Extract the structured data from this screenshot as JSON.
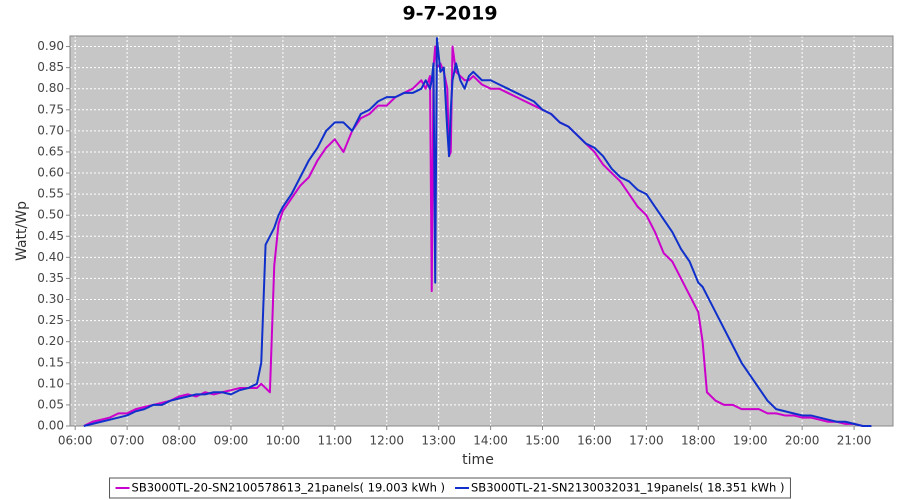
{
  "chart_data": {
    "type": "line",
    "title": "9-7-2019",
    "x_label": "time",
    "y_label": "Watt/Wp",
    "x": [
      370,
      380,
      390,
      400,
      410,
      420,
      430,
      440,
      450,
      460,
      470,
      480,
      490,
      500,
      510,
      520,
      530,
      540,
      550,
      560,
      570,
      575,
      580,
      585,
      590,
      595,
      600,
      610,
      620,
      630,
      640,
      650,
      660,
      670,
      680,
      690,
      700,
      710,
      720,
      730,
      740,
      750,
      760,
      765,
      770,
      772,
      774,
      776,
      778,
      782,
      786,
      790,
      792,
      794,
      796,
      800,
      805,
      810,
      815,
      820,
      830,
      840,
      850,
      860,
      870,
      880,
      890,
      900,
      910,
      920,
      930,
      940,
      950,
      960,
      970,
      980,
      990,
      1000,
      1010,
      1020,
      1030,
      1040,
      1050,
      1060,
      1070,
      1080,
      1085,
      1090,
      1100,
      1110,
      1120,
      1130,
      1140,
      1150,
      1160,
      1170,
      1180,
      1190,
      1200,
      1210,
      1220,
      1230,
      1240,
      1250,
      1260,
      1270,
      1280
    ],
    "series": [
      {
        "name": "SB3000TL-20-SN2100578613_21panels( 19.003 kWh )",
        "color": "#cc00cc",
        "values": [
          0.0,
          0.01,
          0.015,
          0.02,
          0.03,
          0.03,
          0.04,
          0.045,
          0.05,
          0.055,
          0.06,
          0.07,
          0.075,
          0.07,
          0.08,
          0.075,
          0.08,
          0.085,
          0.09,
          0.09,
          0.09,
          0.1,
          0.09,
          0.08,
          0.38,
          0.48,
          0.51,
          0.54,
          0.57,
          0.59,
          0.63,
          0.66,
          0.68,
          0.65,
          0.7,
          0.73,
          0.74,
          0.76,
          0.76,
          0.78,
          0.79,
          0.8,
          0.82,
          0.8,
          0.83,
          0.32,
          0.85,
          0.9,
          0.85,
          0.86,
          0.84,
          0.8,
          0.64,
          0.65,
          0.9,
          0.84,
          0.83,
          0.82,
          0.82,
          0.83,
          0.81,
          0.8,
          0.8,
          0.79,
          0.78,
          0.77,
          0.76,
          0.75,
          0.74,
          0.72,
          0.71,
          0.69,
          0.67,
          0.65,
          0.62,
          0.6,
          0.58,
          0.55,
          0.52,
          0.5,
          0.46,
          0.41,
          0.39,
          0.35,
          0.31,
          0.27,
          0.2,
          0.08,
          0.06,
          0.05,
          0.05,
          0.04,
          0.04,
          0.04,
          0.03,
          0.03,
          0.025,
          0.025,
          0.02,
          0.02,
          0.015,
          0.01,
          0.01,
          0.005,
          0.005,
          0.0,
          0.0
        ]
      },
      {
        "name": "SB3000TL-21-SN2130032031_19panels( 18.351 kWh )",
        "color": "#1030cc",
        "values": [
          0.0,
          0.005,
          0.01,
          0.015,
          0.02,
          0.025,
          0.035,
          0.04,
          0.05,
          0.05,
          0.06,
          0.065,
          0.07,
          0.075,
          0.075,
          0.08,
          0.08,
          0.075,
          0.085,
          0.09,
          0.1,
          0.15,
          0.43,
          0.45,
          0.47,
          0.5,
          0.52,
          0.55,
          0.59,
          0.63,
          0.66,
          0.7,
          0.72,
          0.72,
          0.7,
          0.74,
          0.75,
          0.77,
          0.78,
          0.78,
          0.79,
          0.79,
          0.8,
          0.82,
          0.8,
          0.82,
          0.86,
          0.34,
          0.92,
          0.84,
          0.85,
          0.7,
          0.64,
          0.75,
          0.82,
          0.86,
          0.82,
          0.8,
          0.83,
          0.84,
          0.82,
          0.82,
          0.81,
          0.8,
          0.79,
          0.78,
          0.77,
          0.75,
          0.74,
          0.72,
          0.71,
          0.69,
          0.67,
          0.66,
          0.64,
          0.61,
          0.59,
          0.58,
          0.56,
          0.55,
          0.52,
          0.49,
          0.46,
          0.42,
          0.39,
          0.34,
          0.33,
          0.31,
          0.27,
          0.23,
          0.19,
          0.15,
          0.12,
          0.09,
          0.06,
          0.04,
          0.035,
          0.03,
          0.025,
          0.025,
          0.02,
          0.015,
          0.01,
          0.01,
          0.005,
          0.0,
          0.0
        ]
      }
    ],
    "xlim": [
      354,
      1305
    ],
    "ylim": [
      0,
      0.925
    ],
    "xticks": [
      {
        "value": 360,
        "label": "06:00"
      },
      {
        "value": 420,
        "label": "07:00"
      },
      {
        "value": 480,
        "label": "08:00"
      },
      {
        "value": 540,
        "label": "09:00"
      },
      {
        "value": 600,
        "label": "10:00"
      },
      {
        "value": 660,
        "label": "11:00"
      },
      {
        "value": 720,
        "label": "12:00"
      },
      {
        "value": 780,
        "label": "13:00"
      },
      {
        "value": 840,
        "label": "14:00"
      },
      {
        "value": 900,
        "label": "15:00"
      },
      {
        "value": 960,
        "label": "16:00"
      },
      {
        "value": 1020,
        "label": "17:00"
      },
      {
        "value": 1080,
        "label": "18:00"
      },
      {
        "value": 1140,
        "label": "19:00"
      },
      {
        "value": 1200,
        "label": "20:00"
      },
      {
        "value": 1260,
        "label": "21:00"
      }
    ],
    "yticks": [
      {
        "value": 0,
        "label": "0.00"
      },
      {
        "value": 0.05,
        "label": "0.05"
      },
      {
        "value": 0.1,
        "label": "0.10"
      },
      {
        "value": 0.15,
        "label": "0.15"
      },
      {
        "value": 0.2,
        "label": "0.20"
      },
      {
        "value": 0.25,
        "label": "0.25"
      },
      {
        "value": 0.3,
        "label": "0.30"
      },
      {
        "value": 0.35,
        "label": "0.35"
      },
      {
        "value": 0.4,
        "label": "0.40"
      },
      {
        "value": 0.45,
        "label": "0.45"
      },
      {
        "value": 0.5,
        "label": "0.50"
      },
      {
        "value": 0.55,
        "label": "0.55"
      },
      {
        "value": 0.6,
        "label": "0.60"
      },
      {
        "value": 0.65,
        "label": "0.65"
      },
      {
        "value": 0.7,
        "label": "0.70"
      },
      {
        "value": 0.75,
        "label": "0.75"
      },
      {
        "value": 0.8,
        "label": "0.80"
      },
      {
        "value": 0.85,
        "label": "0.85"
      },
      {
        "value": 0.9,
        "label": "0.90"
      }
    ],
    "grid": true
  }
}
